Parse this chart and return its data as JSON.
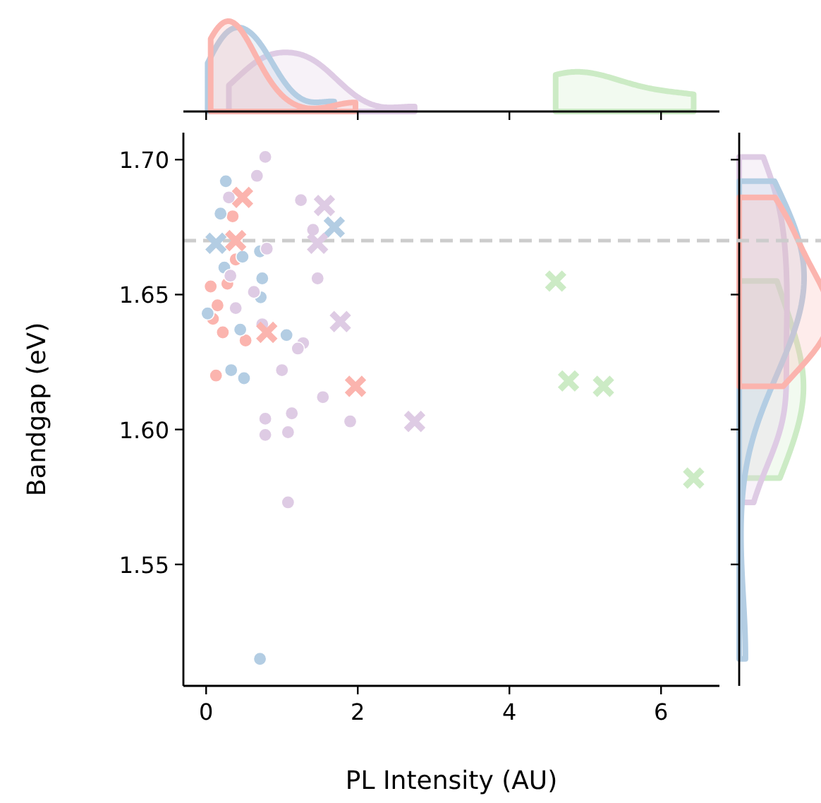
{
  "chart_data": {
    "type": "scatter",
    "xlabel": "PL Intensity (AU)",
    "ylabel": "Bandgap (eV)",
    "xlim": [
      -0.3,
      6.77
    ],
    "ylim": [
      1.505,
      1.71
    ],
    "xticks": [
      0,
      2,
      4,
      6
    ],
    "yticks": [
      1.55,
      {
        "value": 1.6,
        "label": "1.60"
      },
      1.65,
      {
        "value": 1.7,
        "label": "1.70"
      }
    ],
    "grid": false,
    "ref_lines": [
      {
        "axis": "y",
        "value": 1.67,
        "color": "#cccccc",
        "line_style": "dashed"
      }
    ],
    "series": [
      {
        "color": "#fbb4ae",
        "marker": "circle",
        "x": [
          0.35,
          0.39,
          0.06,
          0.28,
          0.15,
          0.09,
          0.22,
          0.52,
          0.13
        ],
        "values": [
          1.679,
          1.663,
          1.653,
          1.654,
          1.646,
          1.641,
          1.636,
          1.633,
          1.62
        ]
      },
      {
        "color": "#b3cde3",
        "marker": "circle",
        "x": [
          0.26,
          0.19,
          0.71,
          0.48,
          0.24,
          0.74,
          0.72,
          0.02,
          0.45,
          1.06,
          0.33,
          0.5,
          0.71
        ],
        "values": [
          1.692,
          1.68,
          1.666,
          1.664,
          1.66,
          1.656,
          1.649,
          1.643,
          1.637,
          1.635,
          1.622,
          1.619,
          1.515
        ]
      },
      {
        "color": "#decbe4",
        "marker": "circle",
        "x": [
          0.78,
          0.67,
          0.3,
          1.25,
          1.41,
          0.8,
          0.32,
          0.63,
          1.47,
          0.39,
          0.74,
          1.28,
          1.21,
          1.0,
          1.54,
          0.78,
          1.13,
          0.78,
          1.08,
          1.9,
          1.08
        ],
        "values": [
          1.701,
          1.694,
          1.686,
          1.685,
          1.674,
          1.667,
          1.657,
          1.651,
          1.656,
          1.645,
          1.639,
          1.632,
          1.63,
          1.622,
          1.612,
          1.604,
          1.606,
          1.598,
          1.599,
          1.603,
          1.573
        ]
      },
      {
        "color": "#fbb4ae",
        "marker": "cross",
        "x": [
          0.48,
          0.39,
          0.8,
          1.97
        ],
        "values": [
          1.686,
          1.67,
          1.636,
          1.616
        ]
      },
      {
        "color": "#b3cde3",
        "marker": "cross",
        "x": [
          0.13,
          1.69
        ],
        "values": [
          1.669,
          1.675
        ]
      },
      {
        "color": "#decbe4",
        "marker": "cross",
        "x": [
          1.56,
          1.47,
          1.77,
          2.75
        ],
        "values": [
          1.683,
          1.669,
          1.64,
          1.603
        ]
      },
      {
        "color": "#ccebc5",
        "marker": "cross",
        "x": [
          4.61,
          4.78,
          5.24,
          6.43
        ],
        "values": [
          1.655,
          1.618,
          1.616,
          1.582
        ]
      }
    ]
  }
}
